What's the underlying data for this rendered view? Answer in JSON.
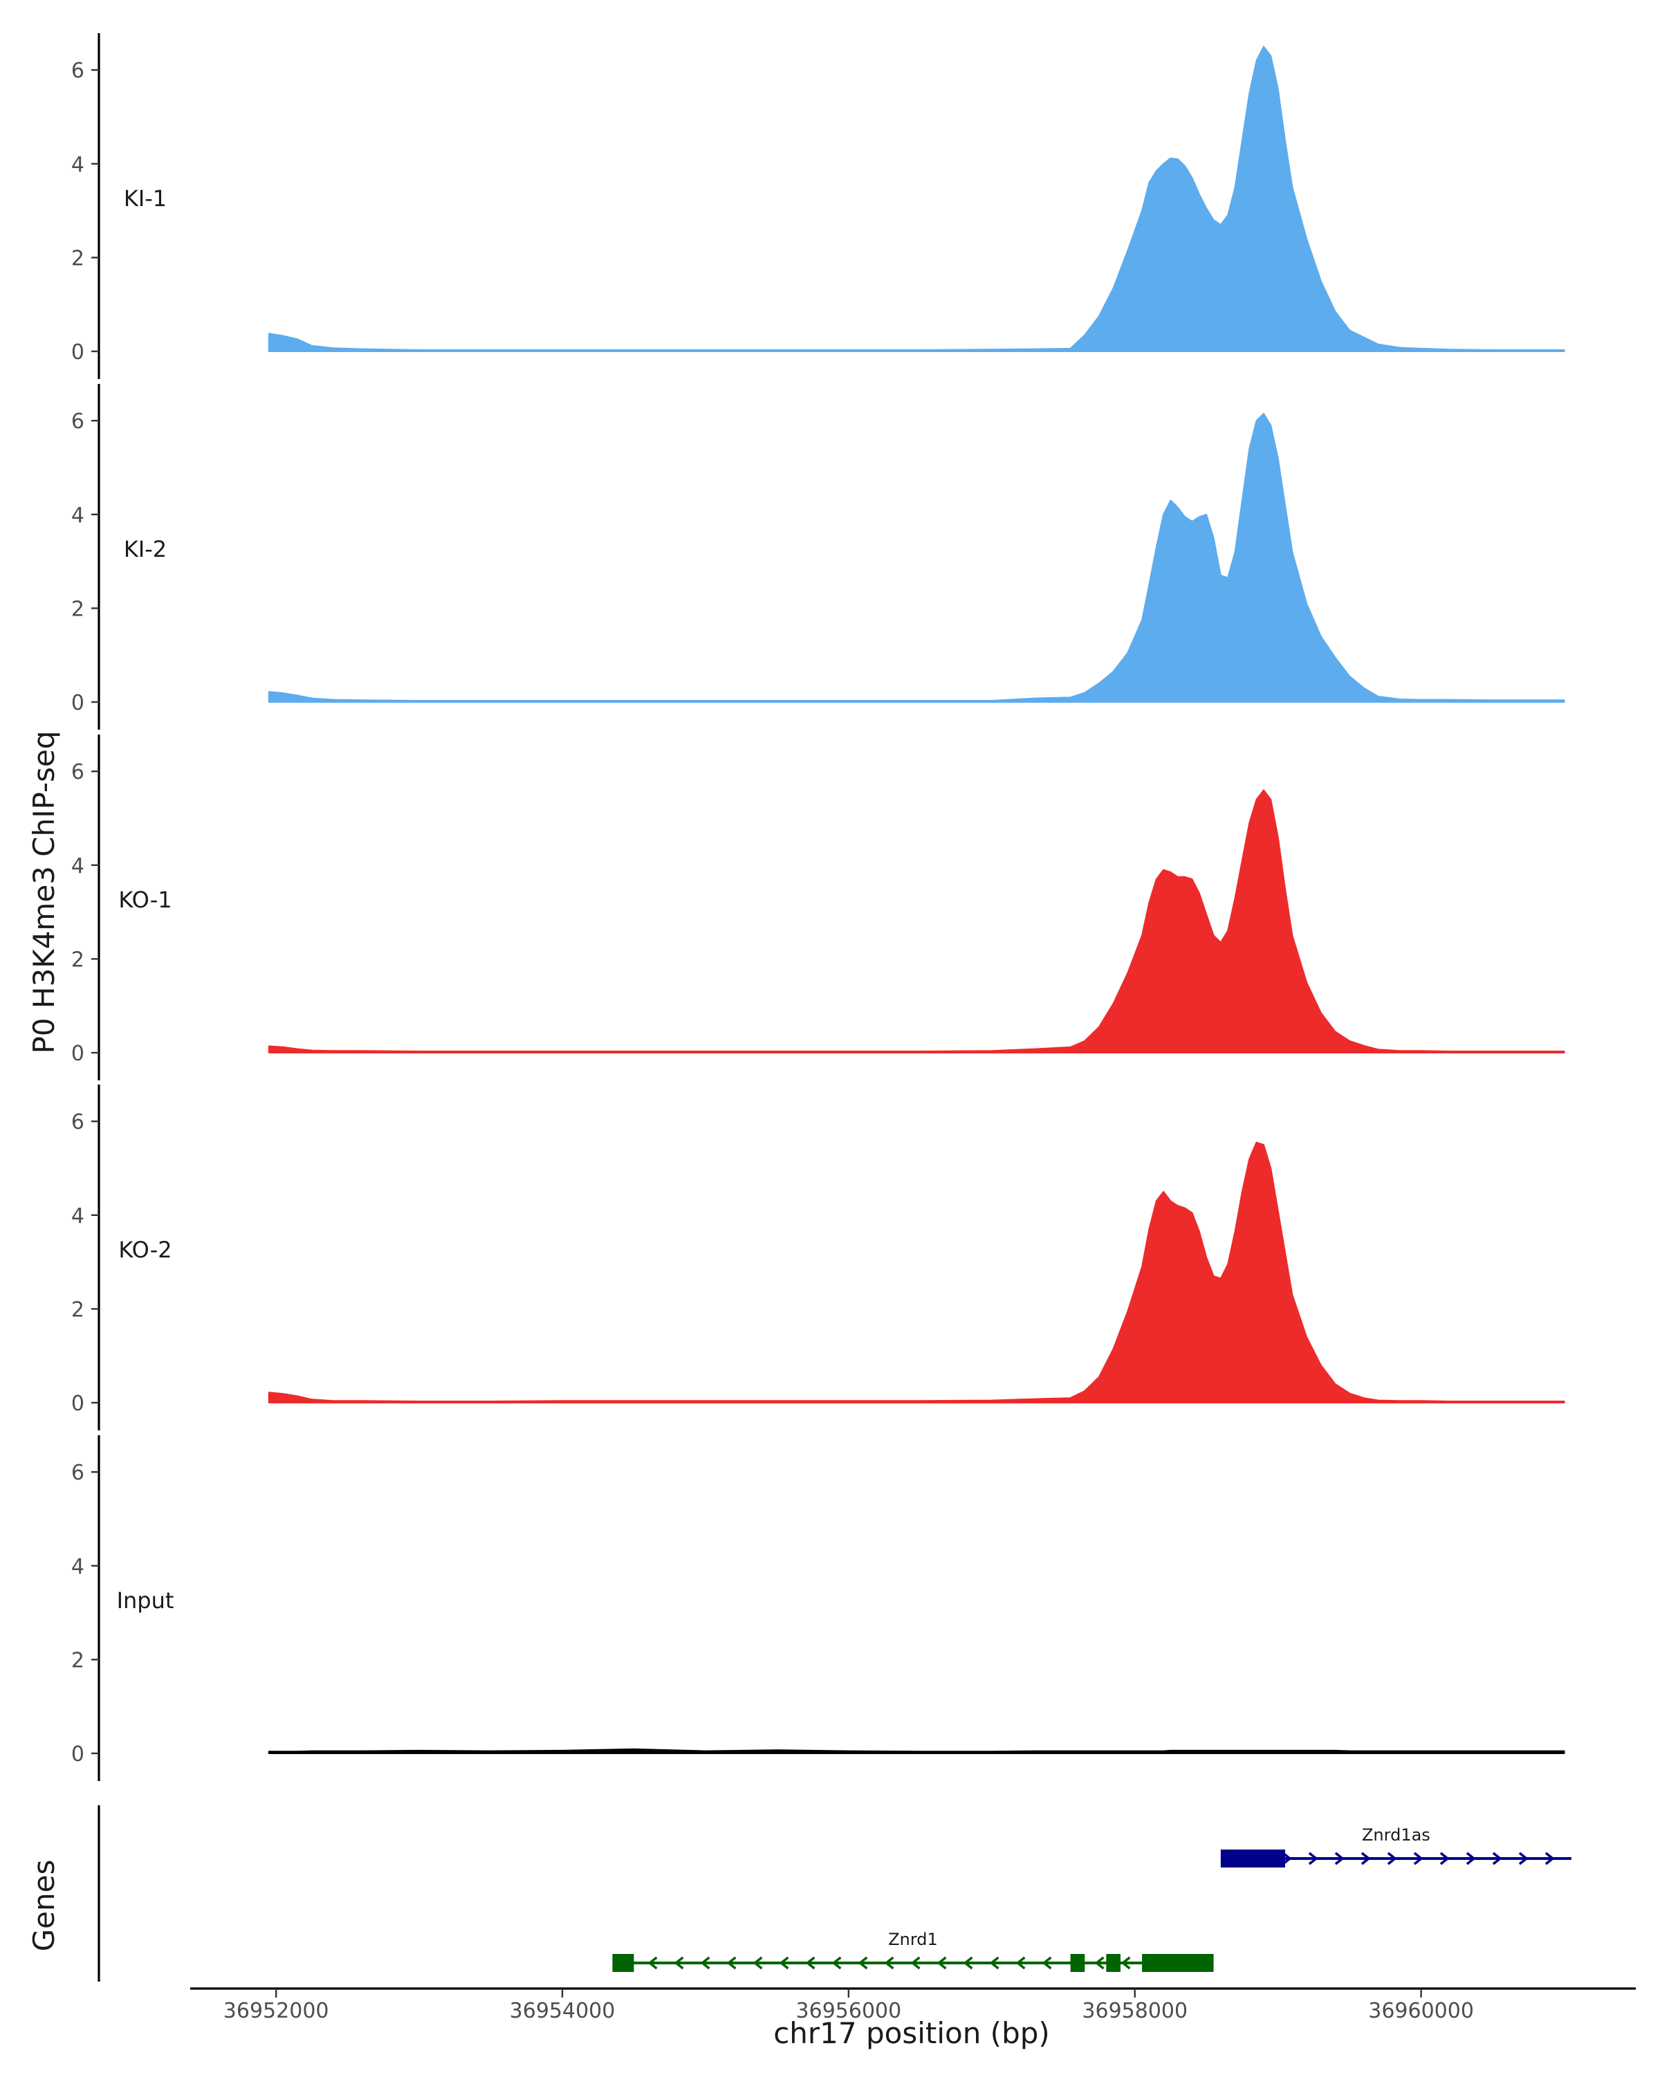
{
  "chart_data": {
    "type": "area",
    "ylabel": "P0 H3K4me3 ChIP-seq",
    "xlabel": "chr17 position (bp)",
    "gene_panel_label": "Genes",
    "xlim": [
      36951400,
      36961500
    ],
    "ylim": [
      0,
      6.8
    ],
    "yticks": [
      0,
      2,
      4,
      6
    ],
    "xticks": [
      36952000,
      36954000,
      36956000,
      36958000,
      36960000
    ],
    "x": [
      36951950,
      36952050,
      36952150,
      36952250,
      36952400,
      36952600,
      36953000,
      36953500,
      36954000,
      36954500,
      36955000,
      36955500,
      36956000,
      36956500,
      36957000,
      36957300,
      36957550,
      36957650,
      36957750,
      36957850,
      36957950,
      36958050,
      36958100,
      36958150,
      36958200,
      36958250,
      36958300,
      36958350,
      36958400,
      36958450,
      36958500,
      36958550,
      36958600,
      36958650,
      36958700,
      36958750,
      36958800,
      36958850,
      36958900,
      36958950,
      36959000,
      36959050,
      36959100,
      36959200,
      36959300,
      36959400,
      36959500,
      36959600,
      36959700,
      36959850,
      36960000,
      36960200,
      36960500,
      36960800,
      36961000
    ],
    "series": [
      {
        "name": "KI-1",
        "color": "#5daced",
        "values": [
          0.38,
          0.33,
          0.26,
          0.12,
          0.07,
          0.05,
          0.03,
          0.03,
          0.03,
          0.03,
          0.03,
          0.03,
          0.03,
          0.03,
          0.04,
          0.05,
          0.06,
          0.35,
          0.75,
          1.35,
          2.15,
          3.0,
          3.6,
          3.85,
          4.0,
          4.12,
          4.1,
          3.95,
          3.7,
          3.35,
          3.05,
          2.8,
          2.7,
          2.9,
          3.5,
          4.5,
          5.5,
          6.2,
          6.5,
          6.3,
          5.6,
          4.5,
          3.5,
          2.4,
          1.5,
          0.85,
          0.45,
          0.3,
          0.15,
          0.08,
          0.06,
          0.04,
          0.03,
          0.03,
          0.03
        ]
      },
      {
        "name": "KI-2",
        "color": "#5daced",
        "values": [
          0.22,
          0.19,
          0.14,
          0.08,
          0.05,
          0.04,
          0.03,
          0.03,
          0.03,
          0.03,
          0.03,
          0.03,
          0.03,
          0.03,
          0.03,
          0.08,
          0.1,
          0.2,
          0.4,
          0.65,
          1.05,
          1.75,
          2.5,
          3.3,
          4.0,
          4.3,
          4.15,
          3.95,
          3.85,
          3.95,
          4.0,
          3.5,
          2.7,
          2.65,
          3.2,
          4.3,
          5.4,
          6.0,
          6.15,
          5.9,
          5.2,
          4.2,
          3.2,
          2.1,
          1.4,
          0.95,
          0.55,
          0.3,
          0.12,
          0.06,
          0.05,
          0.05,
          0.04,
          0.04,
          0.04
        ]
      },
      {
        "name": "KO-1",
        "color": "#ee2b2b",
        "values": [
          0.14,
          0.12,
          0.08,
          0.05,
          0.04,
          0.04,
          0.03,
          0.03,
          0.03,
          0.03,
          0.03,
          0.03,
          0.03,
          0.03,
          0.04,
          0.08,
          0.12,
          0.25,
          0.55,
          1.05,
          1.7,
          2.5,
          3.2,
          3.7,
          3.9,
          3.85,
          3.75,
          3.75,
          3.7,
          3.4,
          2.95,
          2.5,
          2.35,
          2.6,
          3.3,
          4.1,
          4.9,
          5.4,
          5.6,
          5.4,
          4.6,
          3.5,
          2.5,
          1.5,
          0.85,
          0.45,
          0.25,
          0.15,
          0.07,
          0.04,
          0.04,
          0.03,
          0.03,
          0.03,
          0.03
        ]
      },
      {
        "name": "KO-2",
        "color": "#ee2b2b",
        "values": [
          0.22,
          0.19,
          0.14,
          0.07,
          0.04,
          0.04,
          0.03,
          0.03,
          0.04,
          0.04,
          0.04,
          0.04,
          0.04,
          0.04,
          0.05,
          0.08,
          0.1,
          0.25,
          0.55,
          1.15,
          1.95,
          2.9,
          3.7,
          4.3,
          4.5,
          4.3,
          4.2,
          4.15,
          4.05,
          3.65,
          3.1,
          2.7,
          2.65,
          2.95,
          3.65,
          4.5,
          5.2,
          5.55,
          5.5,
          5.0,
          4.1,
          3.2,
          2.3,
          1.4,
          0.8,
          0.4,
          0.2,
          0.1,
          0.05,
          0.04,
          0.04,
          0.03,
          0.03,
          0.03,
          0.03
        ]
      },
      {
        "name": "Input",
        "color": "#000000",
        "values": [
          0.04,
          0.04,
          0.04,
          0.05,
          0.05,
          0.05,
          0.06,
          0.05,
          0.06,
          0.09,
          0.05,
          0.07,
          0.05,
          0.04,
          0.04,
          0.05,
          0.05,
          0.05,
          0.05,
          0.05,
          0.05,
          0.05,
          0.05,
          0.05,
          0.05,
          0.06,
          0.06,
          0.06,
          0.06,
          0.06,
          0.06,
          0.06,
          0.06,
          0.06,
          0.06,
          0.06,
          0.06,
          0.06,
          0.06,
          0.06,
          0.06,
          0.06,
          0.06,
          0.06,
          0.06,
          0.06,
          0.05,
          0.05,
          0.05,
          0.05,
          0.05,
          0.05,
          0.05,
          0.05,
          0.05
        ]
      }
    ],
    "genes": [
      {
        "name": "Znrd1as",
        "strand": "+",
        "row": "top",
        "color": "#00008b",
        "start": 36958600,
        "end": 36961050,
        "exons": [
          [
            36958600,
            36959050
          ]
        ]
      },
      {
        "name": "Znrd1",
        "strand": "-",
        "row": "bottom",
        "color": "#006400",
        "start": 36954350,
        "end": 36958550,
        "exons": [
          [
            36954350,
            36954500
          ],
          [
            36957550,
            36957650
          ],
          [
            36957800,
            36957900
          ],
          [
            36958050,
            36958550
          ]
        ]
      }
    ]
  }
}
